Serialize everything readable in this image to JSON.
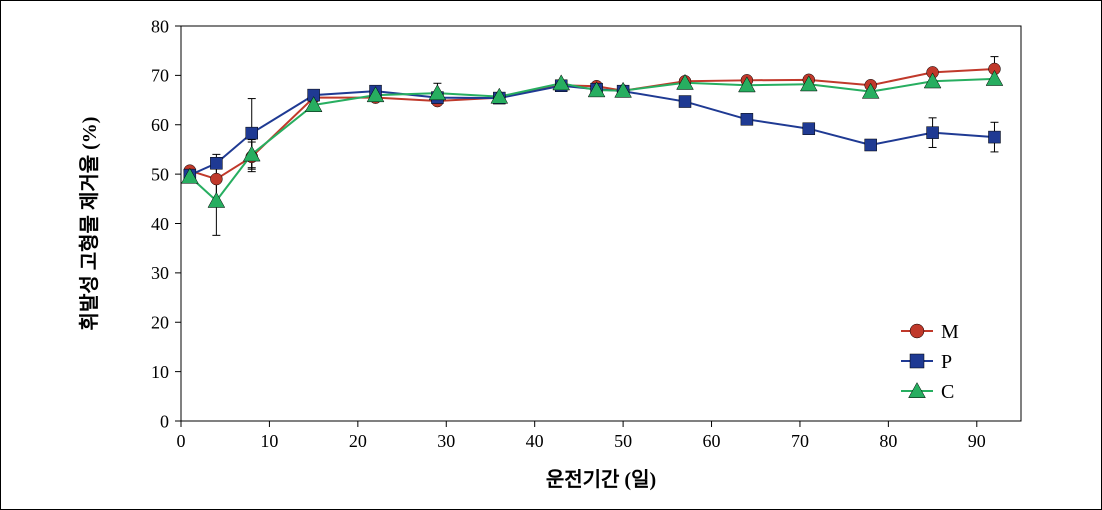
{
  "chart": {
    "type": "line+scatter",
    "background_color": "#ffffff",
    "plot_border_color": "#000000",
    "plot_border_width": 1,
    "xlabel": "운전기간 (일)",
    "ylabel": "휘발성 고형물 제거율 (%)",
    "axis_label_fontsize": 20,
    "axis_label_fontweight": "bold",
    "tick_fontsize": 18,
    "tick_color": "#000000",
    "tick_length": 6,
    "xlim": [
      0,
      95
    ],
    "ylim": [
      0,
      80
    ],
    "xtick_step": 10,
    "ytick_step": 10,
    "x_values": [
      1,
      4,
      8,
      15,
      22,
      29,
      36,
      43,
      47,
      50,
      57,
      64,
      71,
      78,
      85,
      92
    ],
    "series": [
      {
        "name": "M",
        "marker": "circle",
        "marker_color": "#c0392b",
        "line_color": "#c0392b",
        "line_width": 2,
        "marker_size": 6,
        "y": [
          50.7,
          49.0,
          53.5,
          65.5,
          65.5,
          64.8,
          65.5,
          68.0,
          67.8,
          66.9,
          68.8,
          69.0,
          69.1,
          68.0,
          70.6,
          71.3
        ],
        "err": [
          null,
          5,
          3,
          null,
          null,
          null,
          null,
          null,
          null,
          null,
          null,
          null,
          null,
          null,
          null,
          2.5
        ]
      },
      {
        "name": "P",
        "marker": "square",
        "marker_color": "#1f3a93",
        "line_color": "#1f3a93",
        "line_width": 2,
        "marker_size": 6,
        "y": [
          49.8,
          52.2,
          58.3,
          66.0,
          66.8,
          65.5,
          65.4,
          67.9,
          67.2,
          66.8,
          64.7,
          61.1,
          59.2,
          55.9,
          58.4,
          57.5
        ],
        "err": [
          null,
          null,
          7,
          null,
          null,
          null,
          null,
          null,
          null,
          null,
          null,
          null,
          null,
          null,
          3,
          3
        ]
      },
      {
        "name": "C",
        "marker": "triangle",
        "marker_color": "#27ae60",
        "line_color": "#27ae60",
        "line_width": 2,
        "marker_size": 7,
        "y": [
          49.5,
          44.6,
          54.0,
          64.0,
          66.0,
          66.4,
          65.7,
          68.4,
          67.0,
          66.9,
          68.5,
          68.0,
          68.2,
          66.7,
          68.8,
          69.3
        ],
        "err": [
          null,
          7,
          3,
          null,
          null,
          2,
          null,
          null,
          null,
          null,
          null,
          null,
          null,
          null,
          null,
          null
        ]
      }
    ],
    "legend": {
      "items": [
        {
          "label": "M",
          "marker": "circle",
          "color": "#c0392b"
        },
        {
          "label": "P",
          "marker": "square",
          "color": "#1f3a93"
        },
        {
          "label": "C",
          "marker": "triangle",
          "color": "#27ae60"
        }
      ],
      "fontsize": 20,
      "position": "lower-right"
    }
  }
}
